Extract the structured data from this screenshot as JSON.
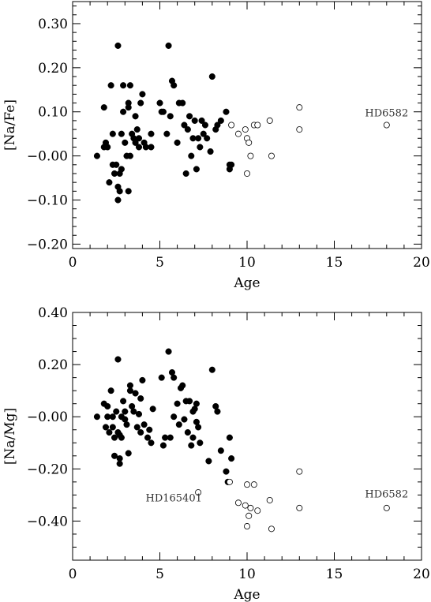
{
  "chart_data": [
    {
      "type": "scatter",
      "xlabel": "Age",
      "ylabel": "[Na/Fe]",
      "xlim": [
        0,
        20
      ],
      "ylim": [
        -0.21,
        0.35
      ],
      "xticks": [
        0,
        5,
        10,
        15,
        20
      ],
      "xtick_labels": [
        "0",
        "5",
        "10",
        "15",
        "20"
      ],
      "yticks": [
        -0.2,
        -0.1,
        0.0,
        0.1,
        0.2,
        0.3
      ],
      "ytick_labels": [
        "−0.20",
        "−0.10",
        "−0.00",
        "0.10",
        "0.20",
        "0.30"
      ],
      "annotations": [
        {
          "text": "HD6582",
          "x": 18.0,
          "y": 0.09
        }
      ],
      "series": [
        {
          "marker": "filled",
          "points": [
            [
              1.4,
              0.0
            ],
            [
              1.8,
              0.02
            ],
            [
              1.8,
              0.11
            ],
            [
              1.9,
              0.03
            ],
            [
              2.0,
              0.02
            ],
            [
              2.1,
              -0.06
            ],
            [
              2.2,
              0.16
            ],
            [
              2.3,
              -0.02
            ],
            [
              2.3,
              0.05
            ],
            [
              2.4,
              -0.04
            ],
            [
              2.5,
              -0.02
            ],
            [
              2.6,
              0.25
            ],
            [
              2.6,
              -0.07
            ],
            [
              2.6,
              -0.1
            ],
            [
              2.7,
              -0.04
            ],
            [
              2.7,
              -0.08
            ],
            [
              2.8,
              0.05
            ],
            [
              2.8,
              -0.03
            ],
            [
              2.9,
              0.16
            ],
            [
              2.9,
              0.1
            ],
            [
              3.0,
              0.03
            ],
            [
              3.1,
              0.0
            ],
            [
              3.2,
              0.12
            ],
            [
              3.2,
              0.11
            ],
            [
              3.2,
              -0.08
            ],
            [
              3.3,
              0.16
            ],
            [
              3.3,
              0.0
            ],
            [
              3.4,
              0.05
            ],
            [
              3.5,
              0.04
            ],
            [
              3.6,
              0.09
            ],
            [
              3.6,
              0.03
            ],
            [
              3.7,
              0.06
            ],
            [
              3.8,
              0.02
            ],
            [
              3.8,
              0.04
            ],
            [
              3.9,
              0.12
            ],
            [
              4.0,
              0.14
            ],
            [
              4.1,
              0.03
            ],
            [
              4.2,
              0.02
            ],
            [
              4.5,
              0.05
            ],
            [
              4.5,
              0.02
            ],
            [
              5.0,
              0.12
            ],
            [
              5.1,
              0.1
            ],
            [
              5.2,
              0.1
            ],
            [
              5.4,
              0.05
            ],
            [
              5.5,
              0.25
            ],
            [
              5.6,
              0.09
            ],
            [
              5.7,
              0.17
            ],
            [
              5.8,
              0.16
            ],
            [
              6.0,
              0.03
            ],
            [
              6.1,
              0.12
            ],
            [
              6.3,
              0.12
            ],
            [
              6.4,
              0.07
            ],
            [
              6.5,
              -0.04
            ],
            [
              6.6,
              0.06
            ],
            [
              6.7,
              0.09
            ],
            [
              6.8,
              0.0
            ],
            [
              6.9,
              0.04
            ],
            [
              7.0,
              0.08
            ],
            [
              7.1,
              -0.03
            ],
            [
              7.2,
              0.04
            ],
            [
              7.3,
              0.02
            ],
            [
              7.4,
              0.08
            ],
            [
              7.5,
              0.05
            ],
            [
              7.6,
              0.07
            ],
            [
              7.7,
              0.04
            ],
            [
              7.9,
              0.01
            ],
            [
              8.0,
              0.18
            ],
            [
              8.2,
              0.06
            ],
            [
              8.3,
              0.07
            ],
            [
              8.5,
              0.08
            ],
            [
              8.8,
              0.1
            ],
            [
              9.0,
              -0.02
            ],
            [
              9.0,
              -0.03
            ],
            [
              9.1,
              -0.02
            ]
          ]
        },
        {
          "marker": "open",
          "points": [
            [
              9.1,
              0.07
            ],
            [
              9.5,
              0.05
            ],
            [
              9.9,
              0.06
            ],
            [
              10.0,
              0.04
            ],
            [
              10.0,
              -0.04
            ],
            [
              10.1,
              0.03
            ],
            [
              10.2,
              0.0
            ],
            [
              10.4,
              0.07
            ],
            [
              10.6,
              0.07
            ],
            [
              11.3,
              0.08
            ],
            [
              11.4,
              0.0
            ],
            [
              13.0,
              0.11
            ],
            [
              13.0,
              0.06
            ],
            [
              18.0,
              0.07
            ]
          ]
        }
      ]
    },
    {
      "type": "scatter",
      "xlabel": "Age",
      "ylabel": "[Na/Mg]",
      "xlim": [
        0,
        20
      ],
      "ylim": [
        -0.55,
        0.4
      ],
      "xticks": [
        0,
        5,
        10,
        15,
        20
      ],
      "xtick_labels": [
        "0",
        "5",
        "10",
        "15",
        "20"
      ],
      "yticks": [
        -0.4,
        -0.2,
        0.0,
        0.2,
        0.4
      ],
      "ytick_labels": [
        "−0.40",
        "−0.20",
        "−0.00",
        "0.20",
        "0.40"
      ],
      "annotations": [
        {
          "text": "HD165401",
          "x": 5.8,
          "y": -0.325
        },
        {
          "text": "HD6582",
          "x": 18.0,
          "y": -0.31
        }
      ],
      "series": [
        {
          "marker": "filled",
          "points": [
            [
              1.4,
              0.0
            ],
            [
              1.8,
              0.05
            ],
            [
              1.9,
              -0.04
            ],
            [
              2.0,
              0.0
            ],
            [
              2.0,
              0.04
            ],
            [
              2.1,
              -0.06
            ],
            [
              2.2,
              0.1
            ],
            [
              2.3,
              -0.04
            ],
            [
              2.3,
              0.0
            ],
            [
              2.4,
              -0.08
            ],
            [
              2.4,
              -0.15
            ],
            [
              2.5,
              0.02
            ],
            [
              2.6,
              0.22
            ],
            [
              2.6,
              -0.06
            ],
            [
              2.7,
              -0.07
            ],
            [
              2.7,
              -0.16
            ],
            [
              2.7,
              -0.18
            ],
            [
              2.8,
              0.0
            ],
            [
              2.8,
              -0.08
            ],
            [
              2.9,
              0.06
            ],
            [
              3.0,
              0.02
            ],
            [
              3.0,
              -0.01
            ],
            [
              3.1,
              -0.03
            ],
            [
              3.2,
              -0.14
            ],
            [
              3.3,
              0.12
            ],
            [
              3.3,
              0.1
            ],
            [
              3.4,
              0.04
            ],
            [
              3.5,
              0.02
            ],
            [
              3.6,
              0.09
            ],
            [
              3.7,
              -0.04
            ],
            [
              3.8,
              0.01
            ],
            [
              3.9,
              0.07
            ],
            [
              3.9,
              -0.06
            ],
            [
              4.0,
              0.14
            ],
            [
              4.1,
              -0.03
            ],
            [
              4.3,
              -0.08
            ],
            [
              4.4,
              -0.05
            ],
            [
              4.5,
              -0.1
            ],
            [
              4.6,
              0.03
            ],
            [
              5.1,
              0.15
            ],
            [
              5.2,
              -0.11
            ],
            [
              5.3,
              -0.08
            ],
            [
              5.5,
              0.25
            ],
            [
              5.6,
              -0.08
            ],
            [
              5.7,
              0.17
            ],
            [
              5.8,
              0.15
            ],
            [
              5.8,
              0.0
            ],
            [
              6.0,
              0.05
            ],
            [
              6.1,
              -0.03
            ],
            [
              6.2,
              0.11
            ],
            [
              6.3,
              0.12
            ],
            [
              6.4,
              -0.01
            ],
            [
              6.5,
              0.06
            ],
            [
              6.6,
              -0.06
            ],
            [
              6.7,
              0.06
            ],
            [
              6.8,
              -0.11
            ],
            [
              6.9,
              0.02
            ],
            [
              6.9,
              -0.08
            ],
            [
              7.0,
              0.03
            ],
            [
              7.1,
              0.05
            ],
            [
              7.1,
              -0.02
            ],
            [
              7.2,
              -0.04
            ],
            [
              7.3,
              -0.1
            ],
            [
              7.8,
              -0.17
            ],
            [
              8.0,
              0.18
            ],
            [
              8.2,
              0.04
            ],
            [
              8.3,
              0.02
            ],
            [
              8.5,
              -0.13
            ],
            [
              8.8,
              -0.21
            ],
            [
              8.9,
              -0.25
            ],
            [
              9.0,
              -0.08
            ],
            [
              9.1,
              -0.16
            ]
          ]
        },
        {
          "marker": "open",
          "points": [
            [
              7.2,
              -0.29
            ],
            [
              9.0,
              -0.25
            ],
            [
              9.5,
              -0.33
            ],
            [
              9.9,
              -0.34
            ],
            [
              10.0,
              -0.26
            ],
            [
              10.0,
              -0.42
            ],
            [
              10.1,
              -0.38
            ],
            [
              10.2,
              -0.35
            ],
            [
              10.4,
              -0.26
            ],
            [
              10.6,
              -0.36
            ],
            [
              11.3,
              -0.32
            ],
            [
              11.4,
              -0.43
            ],
            [
              13.0,
              -0.21
            ],
            [
              13.0,
              -0.35
            ],
            [
              18.0,
              -0.35
            ]
          ]
        }
      ]
    }
  ]
}
